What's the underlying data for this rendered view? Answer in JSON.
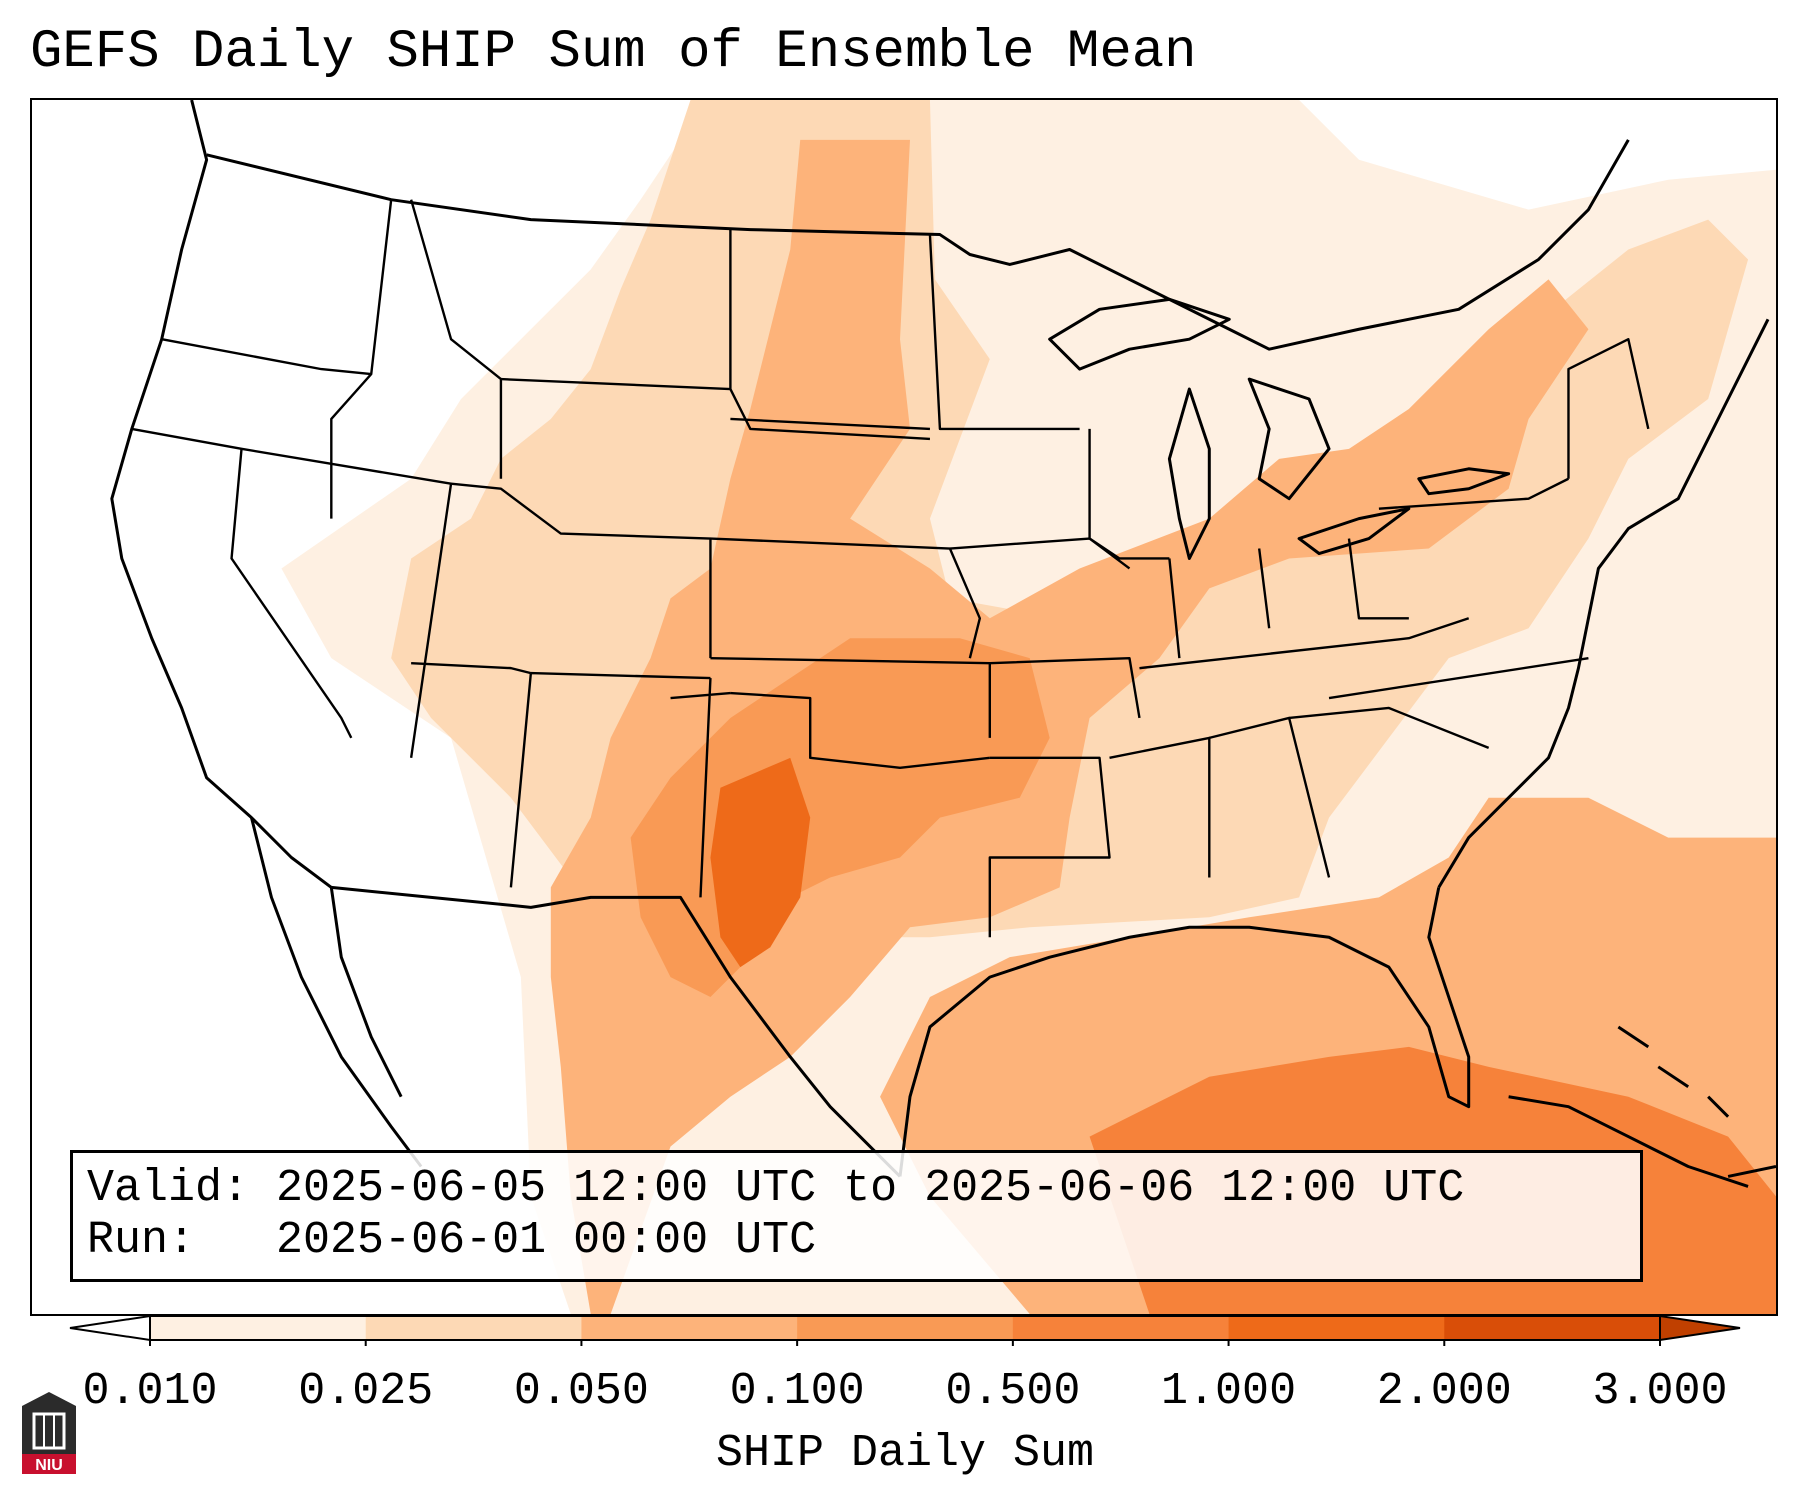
{
  "title": "GEFS Daily SHIP Sum of Ensemble Mean",
  "info": {
    "valid_label": "Valid:",
    "valid_value": "2025-06-05 12:00 UTC to 2025-06-06 12:00 UTC",
    "run_label": "Run:",
    "run_value": "2025-06-01 00:00 UTC"
  },
  "colorbar": {
    "label": "SHIP Daily Sum",
    "ticks": [
      "0.010",
      "0.025",
      "0.050",
      "0.100",
      "0.500",
      "1.000",
      "2.000",
      "3.000"
    ],
    "colors": [
      "#fef0e2",
      "#fdd9b5",
      "#fdb37a",
      "#f99a55",
      "#f6823a",
      "#ee6a19",
      "#d94e08"
    ],
    "under_color": "#ffffff",
    "over_color": "#c04000"
  },
  "logo": {
    "text": "NIU",
    "accent": "#c8102e"
  }
}
